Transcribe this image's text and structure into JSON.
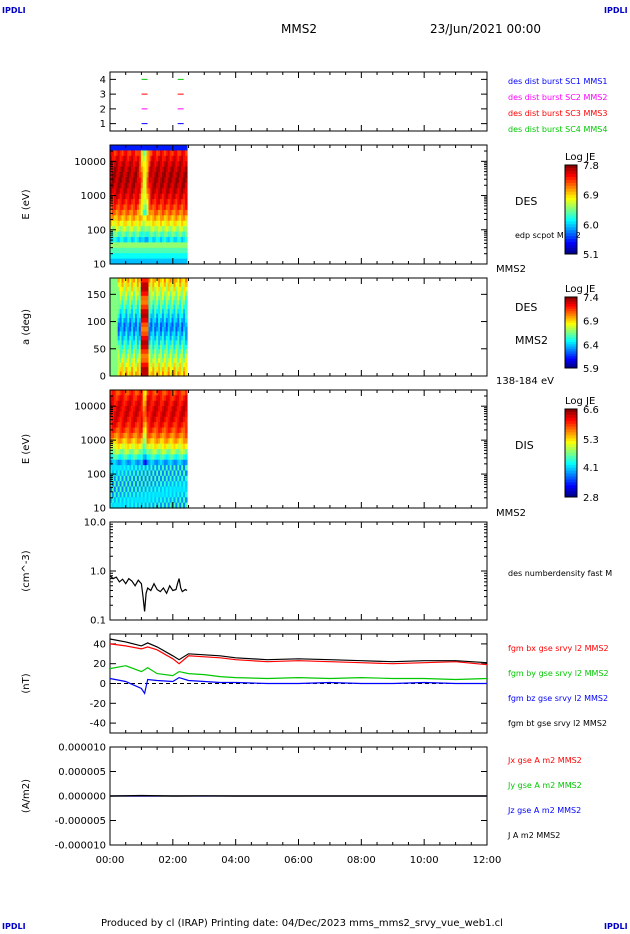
{
  "corner_marks": {
    "top_left": "IPDLI",
    "top_right": "IPDLI",
    "bottom_left": "IPDLI",
    "bottom_right": "IPDLI"
  },
  "header": {
    "spacecraft": "MMS2",
    "date": "23/Jun/2021 00:00"
  },
  "footer": {
    "text": "Produced by cl (IRAP)   Printing date: 04/Dec/2023   mms_mms2_srvy_vue_web1.cl"
  },
  "colors": {
    "black": "#000000",
    "red": "#ff0000",
    "green": "#00c800",
    "blue": "#0000ff",
    "magenta": "#ff00ff",
    "label_blue": "#0000c8"
  },
  "x_axis": {
    "ticks": [
      "00:00",
      "02:00",
      "04:00",
      "06:00",
      "08:00",
      "10:00",
      "12:00"
    ],
    "range_hours": [
      0,
      12
    ]
  },
  "chart_data": [
    {
      "type": "scatter",
      "name": "burst availability",
      "ylim": [
        0.5,
        4.5
      ],
      "yticks": [
        "1",
        "2",
        "3",
        "4"
      ],
      "series": [
        {
          "name": "des dist burst SC1 MMS1",
          "color": "#0000ff",
          "y": 1,
          "x_hours": [
            1.1,
            2.25
          ]
        },
        {
          "name": "des dist burst SC2 MMS2",
          "color": "#ff00ff",
          "y": 2,
          "x_hours": [
            1.1,
            2.25
          ]
        },
        {
          "name": "des dist burst SC3 MMS3",
          "color": "#ff0000",
          "y": 3,
          "x_hours": [
            1.1,
            2.25
          ]
        },
        {
          "name": "des dist burst SC4 MMS4",
          "color": "#00c800",
          "y": 4,
          "x_hours": [
            1.1,
            2.25
          ]
        }
      ]
    },
    {
      "type": "heatmap",
      "name": "DES energy spectrogram",
      "ylabel": "E (eV)",
      "yscale": "log",
      "ylim": [
        10,
        30000
      ],
      "yticks": [
        "10",
        "100",
        "1000",
        "10000"
      ],
      "data_x_range_hours": [
        0,
        2.45
      ],
      "side_labels": [
        "DES",
        "edp scpot MMS2"
      ],
      "bottom_label": "MMS2",
      "colorbar": {
        "label": "Log JE",
        "ticks": [
          "7.8",
          "6.9",
          "6.0",
          "5.1"
        ],
        "min": 5.1,
        "max": 7.8
      }
    },
    {
      "type": "heatmap",
      "name": "DES pitch angle",
      "ylabel": "a (deg)",
      "ylim": [
        0,
        180
      ],
      "yticks": [
        "0",
        "50",
        "100",
        "150"
      ],
      "data_x_range_hours": [
        0,
        2.45
      ],
      "side_labels": [
        "DES",
        "MMS2"
      ],
      "bottom_label": "138-184 eV",
      "colorbar": {
        "label": "Log JE",
        "ticks": [
          "7.4",
          "6.9",
          "6.4",
          "5.9"
        ],
        "min": 5.9,
        "max": 7.4
      }
    },
    {
      "type": "heatmap",
      "name": "DIS energy spectrogram",
      "ylabel": "E (eV)",
      "yscale": "log",
      "ylim": [
        10,
        30000
      ],
      "yticks": [
        "10",
        "100",
        "1000",
        "10000"
      ],
      "data_x_range_hours": [
        0,
        2.45
      ],
      "side_labels": [
        "DIS"
      ],
      "bottom_label": "MMS2",
      "colorbar": {
        "label": "Log JE",
        "ticks": [
          "6.6",
          "5.3",
          "4.1",
          "2.8"
        ],
        "min": 2.8,
        "max": 6.6
      }
    },
    {
      "type": "line",
      "name": "density",
      "ylabel": "(cm^-3)",
      "yscale": "log",
      "ylim": [
        0.1,
        10
      ],
      "yticks": [
        "0.1",
        "1.0",
        "10.0"
      ],
      "series": [
        {
          "name": "des numberdensity fast M",
          "color": "#000000",
          "x": [
            0,
            0.1,
            0.2,
            0.3,
            0.4,
            0.5,
            0.6,
            0.7,
            0.8,
            0.9,
            1.0,
            1.05,
            1.1,
            1.15,
            1.2,
            1.3,
            1.4,
            1.5,
            1.6,
            1.7,
            1.8,
            1.9,
            2.0,
            2.1,
            2.15,
            2.2,
            2.25,
            2.3,
            2.4,
            2.45
          ],
          "y": [
            0.8,
            0.7,
            0.75,
            0.6,
            0.68,
            0.55,
            0.7,
            0.62,
            0.5,
            0.65,
            0.55,
            0.3,
            0.15,
            0.35,
            0.45,
            0.4,
            0.55,
            0.42,
            0.38,
            0.45,
            0.35,
            0.5,
            0.4,
            0.42,
            0.55,
            0.7,
            0.45,
            0.38,
            0.42,
            0.4
          ]
        }
      ]
    },
    {
      "type": "line",
      "name": "magnetic field",
      "ylabel": "(nT)",
      "ylim": [
        -50,
        50
      ],
      "yticks": [
        "-40",
        "-20",
        "0",
        "20",
        "40"
      ],
      "series": [
        {
          "name": "fgm bx gse srvy l2 MMS2",
          "color": "#ff0000",
          "x": [
            0,
            0.5,
            1.0,
            1.2,
            1.5,
            2.0,
            2.2,
            2.5,
            3.0,
            3.5,
            4.0,
            5.0,
            6.0,
            7.0,
            8.0,
            9.0,
            10.0,
            11.0,
            12.0
          ],
          "y": [
            40,
            38,
            35,
            37,
            34,
            25,
            20,
            28,
            27,
            26,
            24,
            22,
            23,
            22,
            21,
            20,
            21,
            22,
            19
          ]
        },
        {
          "name": "fgm by gse srvy l2 MMS2",
          "color": "#00c800",
          "x": [
            0,
            0.5,
            1.0,
            1.2,
            1.5,
            2.0,
            2.2,
            2.5,
            3.0,
            3.5,
            4.0,
            5.0,
            6.0,
            7.0,
            8.0,
            9.0,
            10.0,
            11.0,
            12.0
          ],
          "y": [
            15,
            18,
            12,
            16,
            10,
            8,
            12,
            10,
            9,
            7,
            6,
            5,
            6,
            5,
            6,
            5,
            5,
            4,
            5
          ]
        },
        {
          "name": "fgm bz gse srvy l2 MMS2",
          "color": "#0000ff",
          "x": [
            0,
            0.5,
            1.0,
            1.1,
            1.2,
            1.5,
            2.0,
            2.2,
            2.5,
            3.0,
            3.5,
            4.0,
            5.0,
            6.0,
            7.0,
            8.0,
            9.0,
            10.0,
            11.0,
            12.0
          ],
          "y": [
            5,
            2,
            -5,
            -10,
            4,
            3,
            2,
            6,
            3,
            2,
            1,
            1,
            0,
            0,
            1,
            0,
            0,
            1,
            0,
            0
          ]
        },
        {
          "name": "fgm bt gse srvy l2 MMS2",
          "color": "#000000",
          "x": [
            0,
            0.5,
            1.0,
            1.2,
            1.5,
            2.0,
            2.2,
            2.5,
            3.0,
            3.5,
            4.0,
            5.0,
            6.0,
            7.0,
            8.0,
            9.0,
            10.0,
            11.0,
            12.0
          ],
          "y": [
            45,
            42,
            38,
            41,
            37,
            28,
            24,
            30,
            29,
            28,
            26,
            24,
            25,
            24,
            23,
            22,
            23,
            23,
            21
          ]
        }
      ]
    },
    {
      "type": "line",
      "name": "current density",
      "ylabel": "(A/m2)",
      "ylim": [
        -1e-05,
        1e-05
      ],
      "yticks": [
        "-0.000010",
        "-0.000005",
        "0.000000",
        "0.000005",
        "0.000010"
      ],
      "series": [
        {
          "name": "Jx gse A m2 MMS2",
          "color": "#ff0000",
          "x": [
            0,
            12
          ],
          "y": [
            0,
            0
          ]
        },
        {
          "name": "Jy gse A m2 MMS2",
          "color": "#00c800",
          "x": [
            0,
            12
          ],
          "y": [
            0,
            0
          ]
        },
        {
          "name": "Jz gse A m2 MMS2",
          "color": "#0000ff",
          "x": [
            0,
            12
          ],
          "y": [
            0,
            0
          ]
        },
        {
          "name": "J A m2 MMS2",
          "color": "#000000",
          "x": [
            0,
            1,
            2,
            3,
            4,
            12
          ],
          "y": [
            0,
            1e-07,
            0,
            5e-08,
            0,
            0
          ]
        }
      ]
    }
  ]
}
